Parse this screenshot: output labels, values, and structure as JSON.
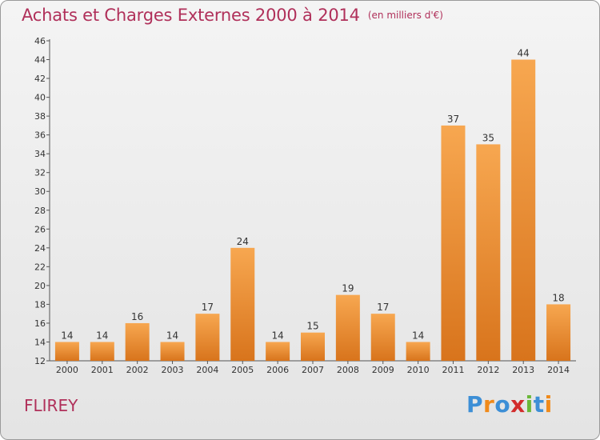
{
  "chart_data": {
    "type": "bar",
    "title": "Achats et Charges Externes 2000 à 2014",
    "subtitle": "(en milliers d'€)",
    "xlabel": "",
    "ylabel": "",
    "categories": [
      "2000",
      "2001",
      "2002",
      "2003",
      "2004",
      "2005",
      "2006",
      "2007",
      "2008",
      "2009",
      "2010",
      "2011",
      "2012",
      "2013",
      "2014"
    ],
    "values": [
      14,
      14,
      16,
      14,
      17,
      24,
      14,
      15,
      19,
      17,
      14,
      37,
      35,
      44,
      18
    ],
    "ylim": [
      12,
      46
    ],
    "yticks": [
      12,
      14,
      16,
      18,
      20,
      22,
      24,
      26,
      28,
      30,
      32,
      34,
      36,
      38,
      40,
      42,
      44,
      46
    ],
    "grid": false,
    "legend": "none",
    "bar_color_light": "#f7a750",
    "bar_color_dark": "#d8741c"
  },
  "footer": {
    "commune": "FLIREY",
    "logo_text": "Proxiti",
    "logo_colors": [
      "#3d8fd6",
      "#f08a1a",
      "#3d8fd6",
      "#d22c2c",
      "#6ab838",
      "#3d8fd6",
      "#f08a1a"
    ]
  }
}
